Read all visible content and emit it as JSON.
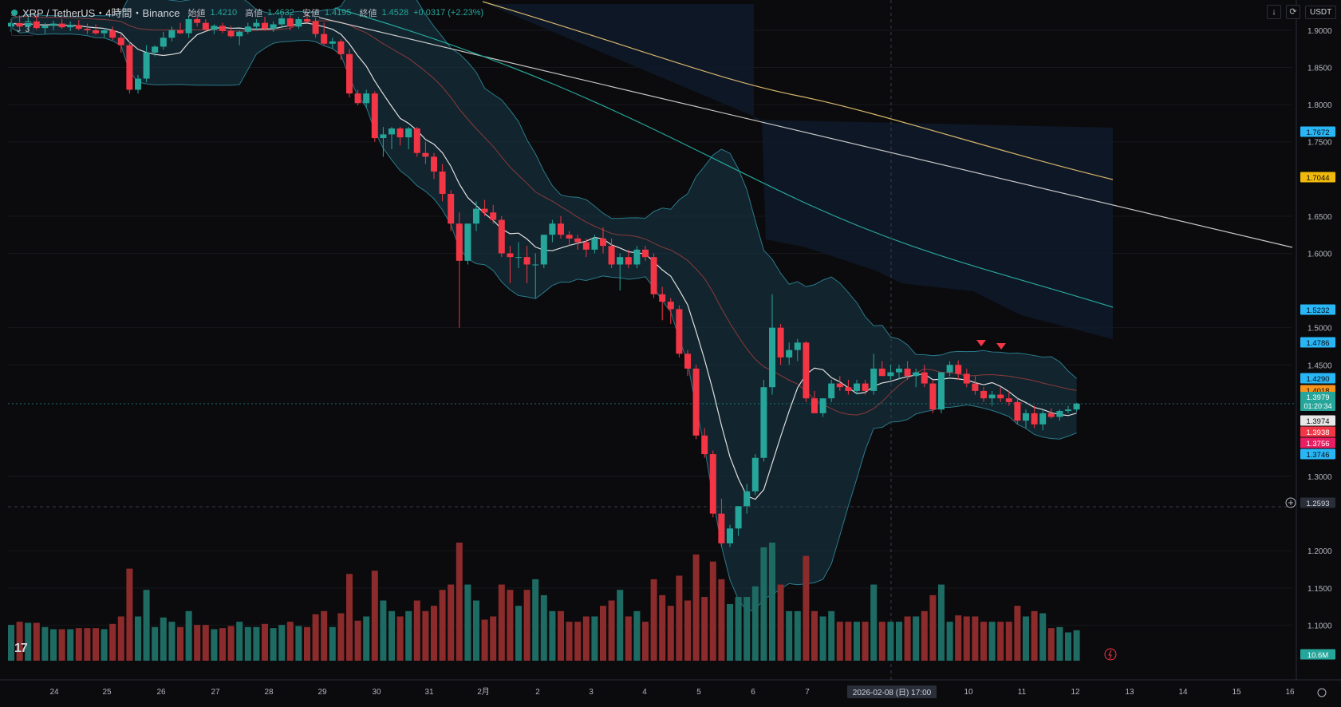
{
  "header": {
    "symbol": "XRP / TetherUS・4時間・Binance",
    "open_label": "始値",
    "open_value": "1.4210",
    "high_label": "高値",
    "high_value": "1.4632",
    "low_label": "安値",
    "low_value": "1.4195",
    "close_label": "終値",
    "close_value": "1.4528",
    "change": "+0.0317 (+2.23%)",
    "indicators_count": "3"
  },
  "toolbar": {
    "currency": "USDT",
    "arrow_icon": "arrow-down-icon",
    "refresh_icon": "refresh-icon"
  },
  "price_axis": {
    "ticks": [
      "1.9000",
      "1.8500",
      "1.8000",
      "1.7500",
      "1.6500",
      "1.6000",
      "1.5000",
      "1.4500",
      "1.3000",
      "1.2000",
      "1.1500",
      "1.1000"
    ]
  },
  "time_axis": {
    "labels": [
      "24",
      "25",
      "26",
      "27",
      "28",
      "29",
      "30",
      "31",
      "2月",
      "2",
      "3",
      "4",
      "5",
      "6",
      "7",
      "10",
      "11",
      "12",
      "13",
      "14",
      "15",
      "16"
    ],
    "crosshair_label": "2026-02-08 (日)  17:00"
  },
  "price_badges": [
    {
      "value": "1.7672",
      "color": "#29b6f6",
      "text_color": "#0b0b0d"
    },
    {
      "value": "1.7044",
      "color": "#f0b90b",
      "text_color": "#0b0b0d"
    },
    {
      "value": "1.5232",
      "color": "#29b6f6",
      "text_color": "#0b0b0d"
    },
    {
      "value": "1.4786",
      "color": "#29b6f6",
      "text_color": "#0b0b0d"
    },
    {
      "value": "1.4290",
      "color": "#29b6f6",
      "text_color": "#0b0b0d"
    },
    {
      "value": "1.4018",
      "color": "#f7931a",
      "text_color": "#0b0b0d"
    },
    {
      "value": "1.3979",
      "color": "#26a69a",
      "text_color": "#ffffff",
      "sub": "01:20:34"
    },
    {
      "value": "1.3974",
      "color": "#e8e8e8",
      "text_color": "#0b0b0d"
    },
    {
      "value": "1.3938",
      "color": "#f23645",
      "text_color": "#ffffff"
    },
    {
      "value": "1.3756",
      "color": "#e91e63",
      "text_color": "#ffffff"
    },
    {
      "value": "1.3746",
      "color": "#29b6f6",
      "text_color": "#0b0b0d"
    },
    {
      "value": "1.2593",
      "color": "#2a2e39",
      "text_color": "#d1d4dc"
    },
    {
      "value": "10.6M",
      "color": "#26a69a",
      "text_color": "#ffffff"
    }
  ],
  "crosshair_price": "1.2593",
  "colors": {
    "up": "#26a69a",
    "down": "#f23645",
    "up_vol": "#1e6b63",
    "down_vol": "#8b2b2b",
    "bb_fill": "#1a3a4a",
    "ma_white": "#e0e0e0",
    "ma_gold": "#d4b56a",
    "ma_teal": "#26a69a",
    "ma_gray": "#c7c7c7"
  },
  "chart_data": {
    "type": "candlestick",
    "title": "XRP / TetherUS・4時間・Binance",
    "ylim": [
      1.05,
      1.93
    ],
    "candles": [
      [
        1.905,
        1.915,
        1.898,
        1.91
      ],
      [
        1.91,
        1.92,
        1.9,
        1.905
      ],
      [
        1.905,
        1.918,
        1.899,
        1.912
      ],
      [
        1.912,
        1.92,
        1.901,
        1.903
      ],
      [
        1.903,
        1.91,
        1.895,
        1.906
      ],
      [
        1.906,
        1.913,
        1.9,
        1.909
      ],
      [
        1.909,
        1.915,
        1.902,
        1.904
      ],
      [
        1.904,
        1.912,
        1.899,
        1.907
      ],
      [
        1.907,
        1.914,
        1.9,
        1.902
      ],
      [
        1.902,
        1.909,
        1.895,
        1.9
      ],
      [
        1.9,
        1.908,
        1.894,
        1.896
      ],
      [
        1.896,
        1.903,
        1.89,
        1.9
      ],
      [
        1.9,
        1.905,
        1.887,
        1.89
      ],
      [
        1.89,
        1.895,
        1.87,
        1.88
      ],
      [
        1.88,
        1.885,
        1.815,
        1.82
      ],
      [
        1.82,
        1.84,
        1.815,
        1.835
      ],
      [
        1.835,
        1.88,
        1.83,
        1.87
      ],
      [
        1.87,
        1.88,
        1.865,
        1.878
      ],
      [
        1.878,
        1.898,
        1.874,
        1.89
      ],
      [
        1.89,
        1.905,
        1.885,
        1.9
      ],
      [
        1.9,
        1.91,
        1.895,
        1.896
      ],
      [
        1.896,
        1.92,
        1.89,
        1.915
      ],
      [
        1.915,
        1.922,
        1.905,
        1.91
      ],
      [
        1.91,
        1.915,
        1.898,
        1.901
      ],
      [
        1.901,
        1.908,
        1.895,
        1.906
      ],
      [
        1.906,
        1.91,
        1.896,
        1.899
      ],
      [
        1.899,
        1.906,
        1.89,
        1.892
      ],
      [
        1.892,
        1.9,
        1.88,
        1.898
      ],
      [
        1.898,
        1.91,
        1.895,
        1.905
      ],
      [
        1.905,
        1.915,
        1.9,
        1.91
      ],
      [
        1.91,
        1.918,
        1.9,
        1.902
      ],
      [
        1.902,
        1.912,
        1.898,
        1.908
      ],
      [
        1.908,
        1.92,
        1.903,
        1.916
      ],
      [
        1.916,
        1.92,
        1.9,
        1.905
      ],
      [
        1.905,
        1.918,
        1.902,
        1.915
      ],
      [
        1.915,
        1.925,
        1.91,
        1.912
      ],
      [
        1.912,
        1.917,
        1.89,
        1.895
      ],
      [
        1.895,
        1.91,
        1.88,
        1.882
      ],
      [
        1.882,
        1.89,
        1.875,
        1.885
      ],
      [
        1.885,
        1.888,
        1.86,
        1.868
      ],
      [
        1.868,
        1.875,
        1.81,
        1.815
      ],
      [
        1.815,
        1.82,
        1.799,
        1.802
      ],
      [
        1.802,
        1.82,
        1.795,
        1.815
      ],
      [
        1.815,
        1.818,
        1.75,
        1.755
      ],
      [
        1.755,
        1.77,
        1.73,
        1.76
      ],
      [
        1.76,
        1.77,
        1.74,
        1.768
      ],
      [
        1.768,
        1.77,
        1.745,
        1.756
      ],
      [
        1.756,
        1.77,
        1.74,
        1.768
      ],
      [
        1.768,
        1.77,
        1.73,
        1.735
      ],
      [
        1.735,
        1.75,
        1.72,
        1.73
      ],
      [
        1.73,
        1.735,
        1.7,
        1.71
      ],
      [
        1.71,
        1.72,
        1.67,
        1.68
      ],
      [
        1.68,
        1.685,
        1.63,
        1.64
      ],
      [
        1.64,
        1.655,
        1.5,
        1.59
      ],
      [
        1.59,
        1.64,
        1.585,
        1.64
      ],
      [
        1.64,
        1.67,
        1.63,
        1.66
      ],
      [
        1.66,
        1.672,
        1.65,
        1.655
      ],
      [
        1.655,
        1.665,
        1.64,
        1.645
      ],
      [
        1.645,
        1.65,
        1.595,
        1.6
      ],
      [
        1.6,
        1.61,
        1.56,
        1.595
      ],
      [
        1.595,
        1.615,
        1.58,
        1.595
      ],
      [
        1.595,
        1.61,
        1.56,
        1.585
      ],
      [
        1.585,
        1.6,
        1.54,
        1.585
      ],
      [
        1.585,
        1.625,
        1.58,
        1.625
      ],
      [
        1.625,
        1.645,
        1.615,
        1.64
      ],
      [
        1.64,
        1.65,
        1.62,
        1.625
      ],
      [
        1.625,
        1.63,
        1.61,
        1.62
      ],
      [
        1.62,
        1.625,
        1.605,
        1.615
      ],
      [
        1.615,
        1.62,
        1.595,
        1.605
      ],
      [
        1.605,
        1.625,
        1.6,
        1.62
      ],
      [
        1.62,
        1.635,
        1.6,
        1.61
      ],
      [
        1.61,
        1.62,
        1.58,
        1.585
      ],
      [
        1.585,
        1.6,
        1.55,
        1.595
      ],
      [
        1.595,
        1.605,
        1.58,
        1.585
      ],
      [
        1.585,
        1.61,
        1.58,
        1.605
      ],
      [
        1.605,
        1.61,
        1.59,
        1.595
      ],
      [
        1.595,
        1.6,
        1.54,
        1.545
      ],
      [
        1.545,
        1.555,
        1.51,
        1.535
      ],
      [
        1.535,
        1.54,
        1.505,
        1.525
      ],
      [
        1.525,
        1.53,
        1.46,
        1.465
      ],
      [
        1.465,
        1.47,
        1.435,
        1.445
      ],
      [
        1.445,
        1.45,
        1.35,
        1.355
      ],
      [
        1.355,
        1.365,
        1.325,
        1.33
      ],
      [
        1.33,
        1.335,
        1.245,
        1.25
      ],
      [
        1.25,
        1.27,
        1.205,
        1.21
      ],
      [
        1.21,
        1.235,
        1.205,
        1.23
      ],
      [
        1.23,
        1.26,
        1.22,
        1.26
      ],
      [
        1.26,
        1.29,
        1.25,
        1.28
      ],
      [
        1.28,
        1.33,
        1.275,
        1.325
      ],
      [
        1.325,
        1.43,
        1.32,
        1.42
      ],
      [
        1.42,
        1.545,
        1.41,
        1.5
      ],
      [
        1.5,
        1.505,
        1.45,
        1.46
      ],
      [
        1.46,
        1.48,
        1.45,
        1.47
      ],
      [
        1.47,
        1.485,
        1.455,
        1.48
      ],
      [
        1.48,
        1.482,
        1.4,
        1.405
      ],
      [
        1.405,
        1.415,
        1.385,
        1.385
      ],
      [
        1.385,
        1.405,
        1.38,
        1.405
      ],
      [
        1.405,
        1.43,
        1.4,
        1.425
      ],
      [
        1.425,
        1.435,
        1.415,
        1.42
      ],
      [
        1.42,
        1.43,
        1.41,
        1.415
      ],
      [
        1.415,
        1.43,
        1.41,
        1.425
      ],
      [
        1.425,
        1.43,
        1.41,
        1.415
      ],
      [
        1.415,
        1.465,
        1.41,
        1.445
      ],
      [
        1.445,
        1.455,
        1.435,
        1.435
      ],
      [
        1.435,
        1.45,
        1.43,
        1.44
      ],
      [
        1.44,
        1.45,
        1.43,
        1.445
      ],
      [
        1.445,
        1.455,
        1.43,
        1.435
      ],
      [
        1.435,
        1.445,
        1.42,
        1.44
      ],
      [
        1.44,
        1.45,
        1.42,
        1.425
      ],
      [
        1.425,
        1.43,
        1.385,
        1.39
      ],
      [
        1.39,
        1.44,
        1.385,
        1.44
      ],
      [
        1.44,
        1.455,
        1.435,
        1.45
      ],
      [
        1.45,
        1.456,
        1.43,
        1.438
      ],
      [
        1.438,
        1.445,
        1.42,
        1.425
      ],
      [
        1.425,
        1.435,
        1.41,
        1.415
      ],
      [
        1.415,
        1.42,
        1.4,
        1.405
      ],
      [
        1.405,
        1.415,
        1.395,
        1.41
      ],
      [
        1.41,
        1.42,
        1.4,
        1.405
      ],
      [
        1.405,
        1.415,
        1.395,
        1.4
      ],
      [
        1.4,
        1.405,
        1.37,
        1.375
      ],
      [
        1.375,
        1.39,
        1.365,
        1.385
      ],
      [
        1.385,
        1.395,
        1.365,
        1.37
      ],
      [
        1.37,
        1.39,
        1.362,
        1.385
      ],
      [
        1.385,
        1.392,
        1.378,
        1.38
      ],
      [
        1.38,
        1.39,
        1.375,
        1.388
      ],
      [
        1.388,
        1.395,
        1.385,
        1.39
      ],
      [
        1.39,
        1.399,
        1.387,
        1.3979
      ]
    ],
    "volume_max_label": "10.6M"
  }
}
